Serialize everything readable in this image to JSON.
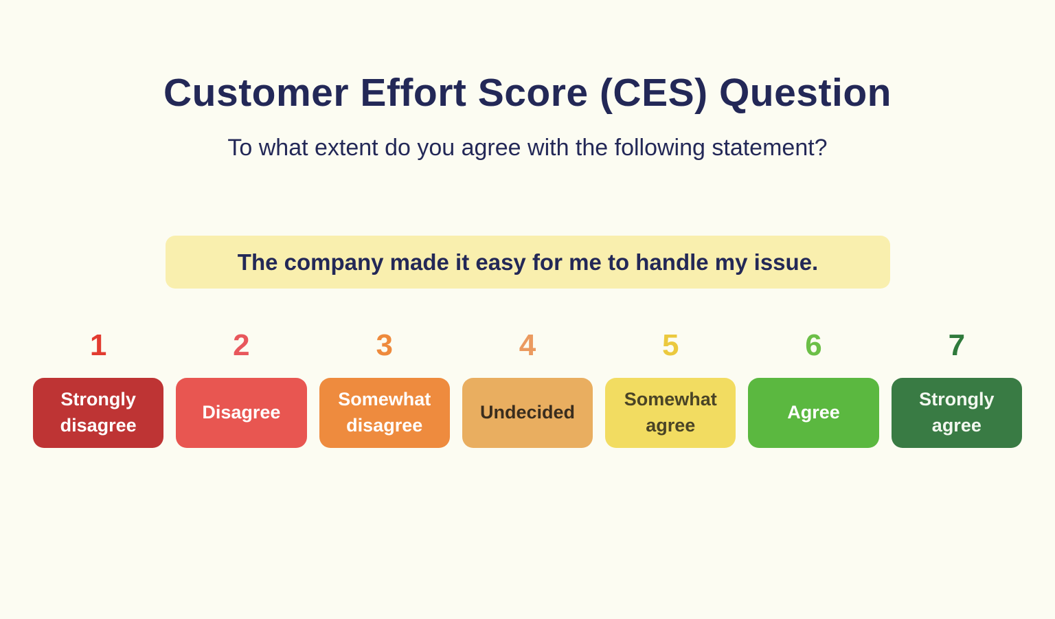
{
  "page": {
    "background_color": "#FCFCF2",
    "title": "Customer Effort Score (CES) Question",
    "subtitle": "To what extent do you agree with the following statement?",
    "heading_color": "#232857"
  },
  "statement": {
    "text": "The company made it easy for me to handle my issue.",
    "background_color": "#F9EFAE"
  },
  "scale": {
    "options": [
      {
        "value": "1",
        "label": "Strongly disagree",
        "box_color": "#BE3434",
        "number_color": "#E23B30",
        "text_color": "#FFFFFF"
      },
      {
        "value": "2",
        "label": "Disagree",
        "box_color": "#E85651",
        "number_color": "#E8575C",
        "text_color": "#FFFFFF"
      },
      {
        "value": "3",
        "label": "Somewhat disagree",
        "box_color": "#EE8B3E",
        "number_color": "#EE8A3C",
        "text_color": "#FFFFFF"
      },
      {
        "value": "4",
        "label": "Undecided",
        "box_color": "#E9AE60",
        "number_color": "#EB9A5F",
        "text_color": "#3A2D1E"
      },
      {
        "value": "5",
        "label": "Somewhat agree",
        "box_color": "#F2DC61",
        "number_color": "#EBC93E",
        "text_color": "#4A4426"
      },
      {
        "value": "6",
        "label": "Agree",
        "box_color": "#5BB840",
        "number_color": "#6CBF47",
        "text_color": "#FFFFFF"
      },
      {
        "value": "7",
        "label": "Strongly agree",
        "box_color": "#397B44",
        "number_color": "#2F7A3C",
        "text_color": "#F2F7EF"
      }
    ]
  }
}
